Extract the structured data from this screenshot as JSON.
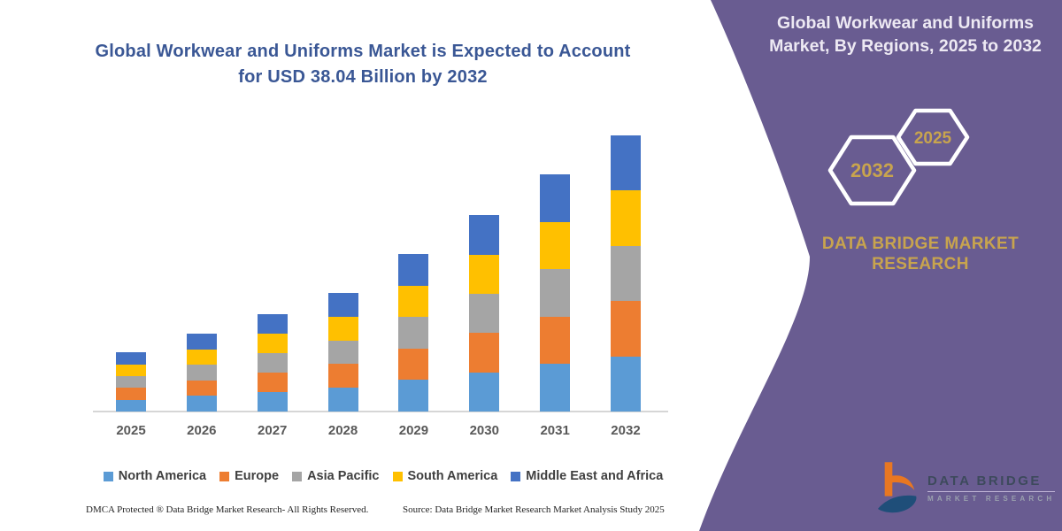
{
  "chart": {
    "title_line1": "Global Workwear and Uniforms Market is Expected to Account",
    "title_line2": "for USD 38.04 Billion by 2032",
    "footer_left": "DMCA Protected ® Data Bridge Market Research-  All Rights Reserved.",
    "footer_source": "Source: Data Bridge Market Research  Market Analysis Study 2025"
  },
  "chart_data": {
    "type": "bar",
    "stacked": true,
    "title": "Global Workwear and Uniforms Market is Expected to Account for USD 38.04 Billion by 2032",
    "unit": "USD Billion",
    "categories": [
      "2025",
      "2026",
      "2027",
      "2028",
      "2029",
      "2030",
      "2031",
      "2032"
    ],
    "series": [
      {
        "name": "North America",
        "color": "#5B9BD5",
        "values": [
          1.63,
          2.15,
          2.68,
          3.27,
          4.34,
          5.41,
          6.53,
          7.61
        ]
      },
      {
        "name": "Europe",
        "color": "#ED7D31",
        "values": [
          1.63,
          2.15,
          2.68,
          3.27,
          4.34,
          5.41,
          6.53,
          7.61
        ]
      },
      {
        "name": "Asia Pacific",
        "color": "#A5A5A5",
        "values": [
          1.63,
          2.15,
          2.68,
          3.27,
          4.34,
          5.41,
          6.53,
          7.61
        ]
      },
      {
        "name": "South America",
        "color": "#FFC000",
        "values": [
          1.63,
          2.15,
          2.68,
          3.27,
          4.34,
          5.41,
          6.53,
          7.61
        ]
      },
      {
        "name": "Middle East and Africa",
        "color": "#4472C4",
        "values": [
          1.63,
          2.15,
          2.68,
          3.27,
          4.34,
          5.41,
          6.53,
          7.61
        ]
      }
    ],
    "totals_usd_billion": [
      8.13,
      10.73,
      13.41,
      16.34,
      21.7,
      27.07,
      32.67,
      38.04
    ],
    "ylim": [
      0,
      40
    ],
    "grid": false,
    "x_axis_labels_visible": true,
    "y_axis_visible": false,
    "legend_position": "bottom",
    "annotation": "2032 total stated in title as USD 38.04 Billion"
  },
  "panel": {
    "title": "Global Workwear and Uniforms Market, By Regions, 2025 to 2032",
    "hex_back_year": "2032",
    "hex_front_year": "2025",
    "brand_title": "DATA BRIDGE MARKET RESEARCH",
    "colors": {
      "background": "#695C91",
      "gold": "#C8A44E",
      "title_text": "#EDE9F3"
    }
  },
  "logo": {
    "line1": "DATA BRIDGE",
    "line2": "MARKET RESEARCH",
    "mark_colors": {
      "orange": "#E87722",
      "blue": "#1F4E79"
    }
  }
}
